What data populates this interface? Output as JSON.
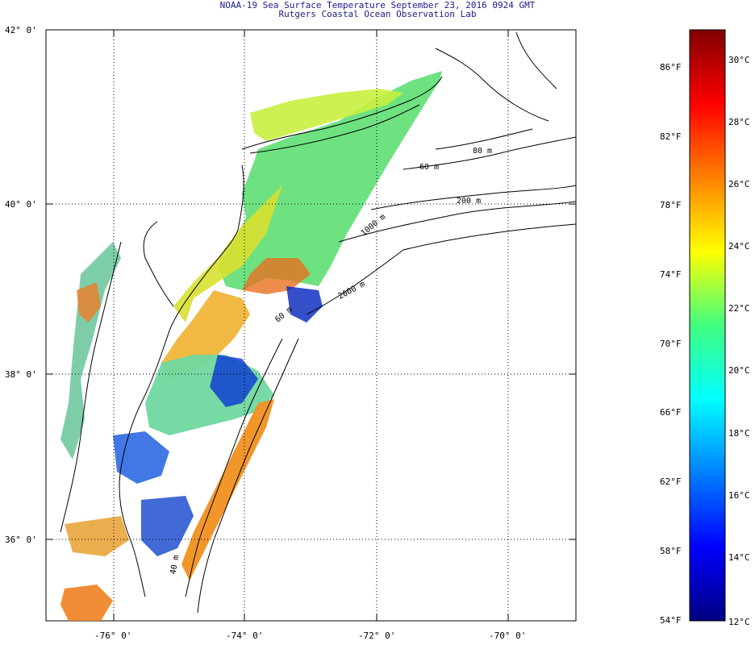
{
  "header": {
    "title": "NOAA-19 Sea Surface Temperature September 23, 2016 0924 GMT",
    "subtitle": "Rutgers Coastal Ocean Observation Lab"
  },
  "map": {
    "lat_labels": [
      "42° 0'",
      "40° 0'",
      "38° 0'",
      "36° 0'"
    ],
    "lon_labels": [
      "-76° 0'",
      "-74° 0'",
      "-72° 0'",
      "-70° 0'"
    ],
    "contour_labels": [
      "60 m",
      "80 m",
      "200 m",
      "1000 m",
      "2000 m",
      "40 m",
      "60 m"
    ]
  },
  "colorbar": {
    "fahrenheit_labels": [
      "86°F",
      "82°F",
      "78°F",
      "74°F",
      "70°F",
      "66°F",
      "62°F",
      "58°F",
      "54°F"
    ],
    "celsius_labels": [
      "30°C",
      "28°C",
      "26°C",
      "24°C",
      "22°C",
      "20°C",
      "18°C",
      "16°C",
      "14°C",
      "12°C"
    ],
    "colors": [
      "#800000",
      "#ff0000",
      "#ff8000",
      "#ffff00",
      "#40ff80",
      "#00ffff",
      "#0080ff",
      "#0000ff",
      "#000080"
    ]
  }
}
